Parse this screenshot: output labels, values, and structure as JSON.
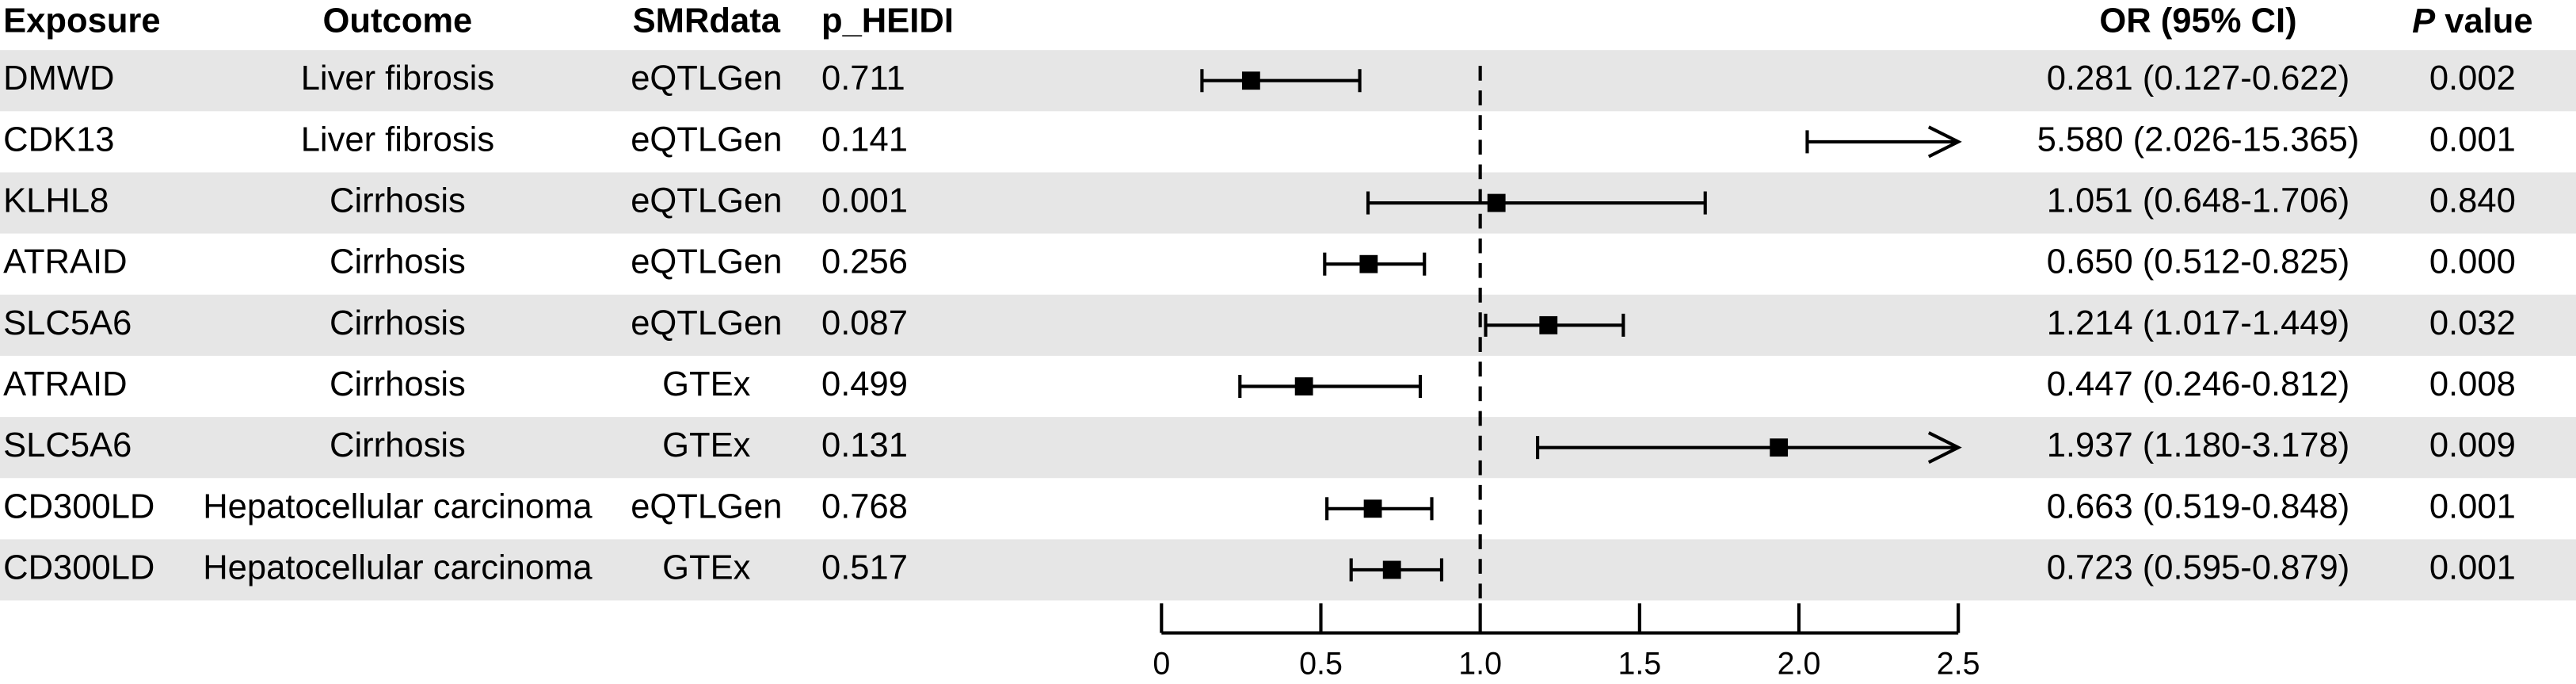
{
  "chart_data": {
    "type": "forest",
    "headers": {
      "exposure": "Exposure",
      "outcome": "Outcome",
      "smr": "SMRdata",
      "heidi": "p_HEIDI",
      "or": "OR (95% CI)",
      "p_italic": "P",
      "p_rest": " value"
    },
    "exposure": [
      "DMWD",
      "CDK13",
      "KLHL8",
      "ATRAID",
      "SLC5A6",
      "ATRAID",
      "SLC5A6",
      "CD300LD",
      "CD300LD"
    ],
    "outcome": [
      "Liver fibrosis",
      "Liver fibrosis",
      "Cirrhosis",
      "Cirrhosis",
      "Cirrhosis",
      "Cirrhosis",
      "Cirrhosis",
      "Hepatocellular carcinoma",
      "Hepatocellular carcinoma"
    ],
    "smrdata": [
      "eQTLGen",
      "eQTLGen",
      "eQTLGen",
      "eQTLGen",
      "eQTLGen",
      "GTEx",
      "GTEx",
      "eQTLGen",
      "GTEx"
    ],
    "p_heidi": [
      "0.711",
      "0.141",
      "0.001",
      "0.256",
      "0.087",
      "0.499",
      "0.131",
      "0.768",
      "0.517"
    ],
    "values": [
      0.281,
      5.58,
      1.051,
      0.65,
      1.214,
      0.447,
      1.937,
      0.663,
      0.723
    ],
    "lower": [
      0.127,
      2.026,
      0.648,
      0.512,
      1.017,
      0.246,
      1.18,
      0.519,
      0.595
    ],
    "upper": [
      0.622,
      15.365,
      1.706,
      0.825,
      1.449,
      0.812,
      3.178,
      0.848,
      0.879
    ],
    "value_labels": [
      "0.281 (0.127-0.622)",
      "5.580 (2.026-15.365)",
      "1.051 (0.648-1.706)",
      "0.650 (0.512-0.825)",
      "1.214 (1.017-1.449)",
      "0.447 (0.246-0.812)",
      "1.937 (1.180-3.178)",
      "0.663 (0.519-0.848)",
      "0.723 (0.595-0.879)"
    ],
    "p_value": [
      "0.002",
      "0.001",
      "0.840",
      "0.000",
      "0.032",
      "0.008",
      "0.009",
      "0.001",
      "0.001"
    ],
    "xlim": [
      0,
      2.5
    ],
    "xticks": [
      0,
      0.5,
      {
        "value": 1,
        "label": "1.0"
      },
      1.5,
      {
        "value": 2,
        "label": "2.0"
      },
      2.5
    ],
    "reference_line": 1,
    "color": "#000000",
    "stripe_color": "#e6e6e6"
  }
}
